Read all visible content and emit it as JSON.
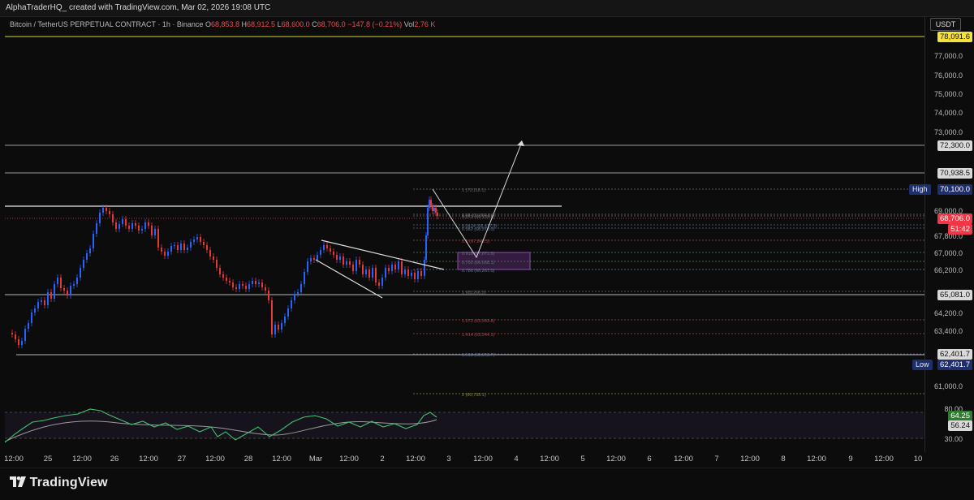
{
  "header": {
    "credit": "AlphaTraderHQ_ created with TradingView.com, Mar 02, 2026 19:08 UTC"
  },
  "legend": {
    "symbol": "Bitcoin / TetherUS PERPETUAL CONTRACT · 1h · Binance",
    "o_key": "O",
    "o_val": "68,853.8",
    "h_key": "H",
    "h_val": "68,912.5",
    "l_key": "L",
    "l_val": "68,600.0",
    "c_key": "C",
    "c_val": "68,706.0",
    "change": "−147.8 (−0.21%)",
    "vol_key": "Vol",
    "vol_val": "2.76 K"
  },
  "price_axis": {
    "currency_button": "USDT",
    "ticks": [
      "77,000.0",
      "76,000.0",
      "75,000.0",
      "74,000.0",
      "73,000.0",
      "69,000.0",
      "67,800.0",
      "67,000.0",
      "66,200.0",
      "64,200.0",
      "63,400.0",
      "61,000.0",
      "80.00",
      "30.00"
    ],
    "tags": {
      "level_78091": "78,091.6",
      "level_72300": "72,300.0",
      "level_70938": "70,938.5",
      "high_label": "High",
      "high_value": "70,100.0",
      "last_price": "68,706.0",
      "countdown": "51:42",
      "level_65081": "65,081.0",
      "level_62401": "62,401.7",
      "low_label": "Low",
      "low_value": "62,401.7",
      "rsi_value": "64.25",
      "rsi_ma_value": "56.24"
    }
  },
  "fib_labels": [
    "1 (70,116.1)",
    "0.88 (69,880.5)",
    "0.272 (69,133.8)",
    "0.3414 (68,477.5)",
    "0.382 (68,370.0)",
    "0.5 (67,843.5)",
    "0.618 (67,671.6)",
    "0.702 (66,668.1)",
    "0.786 (66,267.0)",
    "1 (65,266.3)",
    "1.272 (63,993.8)",
    "1.414 (63,344.1)",
    "1.618 (62,393.7)",
    "2 (60,733.1)"
  ],
  "time_axis": [
    "12:00",
    "25",
    "12:00",
    "26",
    "12:00",
    "27",
    "12:00",
    "28",
    "12:00",
    "Mar",
    "12:00",
    "2",
    "12:00",
    "3",
    "12:00",
    "4",
    "12:00",
    "5",
    "12:00",
    "6",
    "12:00",
    "7",
    "12:00",
    "8",
    "12:00",
    "9",
    "12:00",
    "10"
  ],
  "footer": {
    "brand": "TradingView"
  },
  "colors": {
    "up": "#2962ff",
    "down": "#e53935",
    "last": "#f23645",
    "high_tag": "#1e3a8a",
    "rsi": "#3ec46d",
    "highlight": "#f5e13a"
  }
}
